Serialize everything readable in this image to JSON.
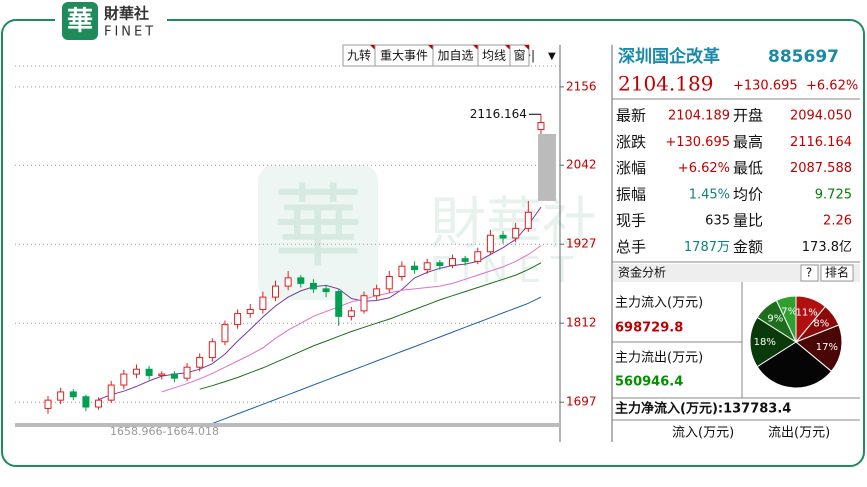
{
  "logo": {
    "mark": "華",
    "name": "財華社",
    "name_en": "FINET"
  },
  "watermark": {
    "mark": "華",
    "name": "財華社",
    "name_en": "FINET"
  },
  "toolbar": [
    "九转",
    "重大事件",
    "加自选",
    "均线",
    "窗"
  ],
  "chart_data": [
    {
      "type": "candlestick",
      "open": [
        1688,
        1700,
        1712,
        1705,
        1690,
        1700,
        1722,
        1738,
        1745,
        1736,
        1738,
        1732,
        1748,
        1762,
        1785,
        1810,
        1826,
        1832,
        1850,
        1866,
        1878,
        1870,
        1862,
        1858,
        1822,
        1830,
        1852,
        1862,
        1880,
        1895,
        1890,
        1900,
        1896,
        1906,
        1902,
        1916,
        1940,
        1936,
        1950,
        2094.05
      ],
      "high": [
        1706,
        1718,
        1716,
        1708,
        1704,
        1728,
        1744,
        1752,
        1750,
        1742,
        1742,
        1754,
        1768,
        1790,
        1816,
        1832,
        1840,
        1858,
        1874,
        1888,
        1882,
        1876,
        1868,
        1862,
        1836,
        1858,
        1868,
        1888,
        1902,
        1902,
        1906,
        1904,
        1912,
        1910,
        1922,
        1948,
        1946,
        1958,
        1990,
        2116.164
      ],
      "low": [
        1680,
        1694,
        1700,
        1684,
        1686,
        1696,
        1716,
        1732,
        1730,
        1730,
        1726,
        1728,
        1742,
        1756,
        1780,
        1804,
        1820,
        1826,
        1844,
        1860,
        1864,
        1856,
        1850,
        1808,
        1816,
        1826,
        1846,
        1856,
        1874,
        1884,
        1884,
        1890,
        1892,
        1896,
        1898,
        1912,
        1928,
        1930,
        1945,
        2087.588
      ],
      "close": [
        1700,
        1712,
        1705,
        1690,
        1700,
        1722,
        1738,
        1745,
        1736,
        1738,
        1732,
        1748,
        1762,
        1785,
        1810,
        1826,
        1832,
        1850,
        1866,
        1878,
        1870,
        1862,
        1858,
        1822,
        1830,
        1852,
        1862,
        1880,
        1895,
        1890,
        1900,
        1896,
        1906,
        1902,
        1916,
        1940,
        1936,
        1950,
        1973.494,
        2104.189
      ],
      "up_color": "#e02020",
      "down_color": "#00a050",
      "gap_color": "#bbbbbb",
      "lines": [
        {
          "color": "#7b3a9a",
          "values": [
            null,
            null,
            null,
            null,
            1701,
            1708,
            1713,
            1720,
            1728,
            1735,
            1738,
            1740,
            1745,
            1753,
            1767,
            1786,
            1803,
            1821,
            1837,
            1850,
            1859,
            1865,
            1867,
            1862,
            1848,
            1844,
            1845,
            1849,
            1861,
            1878,
            1886,
            1892,
            1896,
            1898,
            1902,
            1912,
            1922,
            1934,
            1955,
            1981
          ]
        },
        {
          "color": "#e070c8",
          "values": [
            null,
            null,
            null,
            null,
            null,
            null,
            null,
            null,
            null,
            1712,
            1718,
            1724,
            1731,
            1739,
            1748,
            1757,
            1766,
            1776,
            1790,
            1802,
            1812,
            1822,
            1829,
            1836,
            1843,
            1847,
            1852,
            1856,
            1860,
            1862,
            1864,
            1866,
            1870,
            1876,
            1882,
            1888,
            1894,
            1902,
            1912,
            1925
          ]
        },
        {
          "color": "#1a6e1a",
          "values": [
            null,
            null,
            null,
            null,
            null,
            null,
            null,
            null,
            null,
            null,
            null,
            null,
            1716,
            1721,
            1727,
            1733,
            1740,
            1747,
            1755,
            1763,
            1771,
            1779,
            1786,
            1793,
            1800,
            1806,
            1812,
            1818,
            1825,
            1832,
            1839,
            1846,
            1852,
            1858,
            1864,
            1870,
            1876,
            1882,
            1890,
            1900
          ]
        },
        {
          "color": "#2060a8",
          "values": [
            null,
            null,
            null,
            null,
            null,
            null,
            null,
            null,
            null,
            null,
            1645,
            1652,
            1659,
            1666,
            1673,
            1680,
            1687,
            1694,
            1701,
            1708,
            1715,
            1722,
            1729,
            1736,
            1743,
            1750,
            1757,
            1764,
            1771,
            1778,
            1785,
            1792,
            1799,
            1806,
            1813,
            1820,
            1827,
            1834,
            1841,
            1850
          ]
        }
      ],
      "ylim": [
        1642,
        2217
      ],
      "yticks": [
        2156,
        2042,
        1927,
        1812,
        1697
      ],
      "grid": true,
      "high_label": "2116.164",
      "low_label": "1658.966-1664.018"
    },
    {
      "type": "pie",
      "values": [
        11,
        8,
        17,
        30,
        18,
        9,
        7
      ],
      "value_labels": [
        "11%",
        "8%",
        "17%",
        null,
        "18%",
        "9%",
        "7%"
      ],
      "colors": [
        "#b01010",
        "#8a0a0a",
        "#4a0505",
        "#050505",
        "#0a3a0a",
        "#1c6e1c",
        "#2fa02f"
      ]
    }
  ],
  "quote": {
    "name": "深圳国企改革",
    "code": "885697",
    "price": "2104.189",
    "change": "+130.695",
    "change_pct": "+6.62%",
    "rows": [
      [
        {
          "label": "最新",
          "value": "2104.189",
          "color": "#c00000"
        },
        {
          "label": "开盘",
          "value": "2094.050",
          "color": "#c00000"
        }
      ],
      [
        {
          "label": "涨跌",
          "value": "+130.695",
          "color": "#c00000"
        },
        {
          "label": "最高",
          "value": "2116.164",
          "color": "#c00000"
        }
      ],
      [
        {
          "label": "涨幅",
          "value": "+6.62%",
          "color": "#c00000"
        },
        {
          "label": "最低",
          "value": "2087.588",
          "color": "#c00000"
        }
      ],
      [
        {
          "label": "振幅",
          "value": "1.45%",
          "color": "#108080"
        },
        {
          "label": "均价",
          "value": "9.725",
          "color": "#008000"
        }
      ],
      [
        {
          "label": "现手",
          "value": "635",
          "color": "#111111"
        },
        {
          "label": "量比",
          "value": "2.26",
          "color": "#c00000"
        }
      ],
      [
        {
          "label": "总手",
          "value": "1787万",
          "color": "#108080"
        },
        {
          "label": "金额",
          "value": "173.8亿",
          "color": "#111111"
        }
      ]
    ]
  },
  "fund_flow": {
    "title": "资金分析",
    "help": "?",
    "rank": "排名",
    "inflow_label": "主力流入(万元)",
    "inflow": "698729.8",
    "outflow_label": "主力流出(万元)",
    "outflow": "560946.4",
    "net": "主力净流入(万元):137783.4",
    "legend": [
      "流入(万元)",
      "流出(万元)"
    ]
  }
}
